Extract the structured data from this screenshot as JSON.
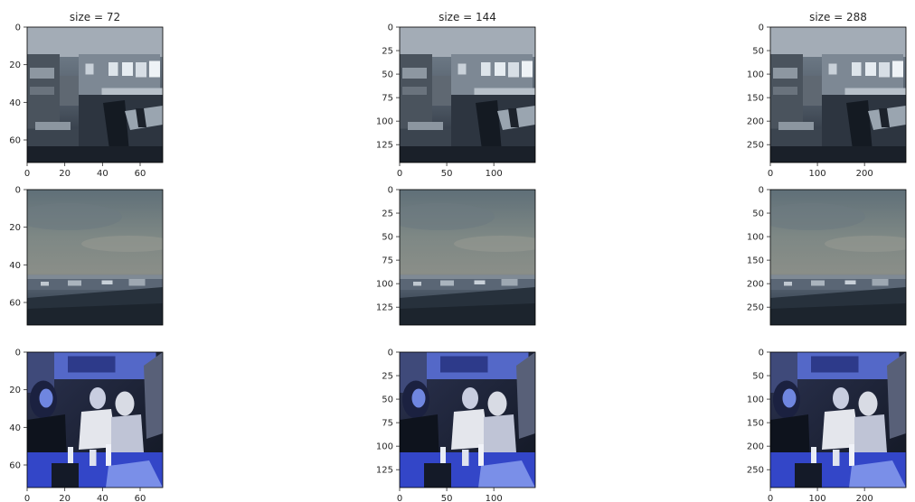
{
  "figure": {
    "background": "#ffffff"
  },
  "chart_data": [
    {
      "type": "image",
      "title": "size = 72",
      "row": 0,
      "col": 0,
      "image": "kitchen-dining-room",
      "xlim": [
        0,
        72
      ],
      "ylim": [
        72,
        0
      ],
      "xticks": [
        0,
        20,
        40,
        60
      ],
      "yticks": [
        0,
        20,
        40,
        60
      ],
      "xticklabels": [
        "0",
        "20",
        "40",
        "60"
      ],
      "yticklabels": [
        "0",
        "20",
        "40",
        "60"
      ]
    },
    {
      "type": "image",
      "title": "size = 144",
      "row": 0,
      "col": 1,
      "image": "kitchen-dining-room",
      "xlim": [
        0,
        144
      ],
      "ylim": [
        144,
        0
      ],
      "xticks": [
        0,
        50,
        100
      ],
      "yticks": [
        0,
        25,
        50,
        75,
        100,
        125
      ],
      "xticklabels": [
        "0",
        "50",
        "100"
      ],
      "yticklabels": [
        "0",
        "25",
        "50",
        "75",
        "100",
        "125"
      ]
    },
    {
      "type": "image",
      "title": "size = 288",
      "row": 0,
      "col": 2,
      "image": "kitchen-dining-room",
      "xlim": [
        0,
        288
      ],
      "ylim": [
        288,
        0
      ],
      "xticks": [
        0,
        100,
        200
      ],
      "yticks": [
        0,
        50,
        100,
        150,
        200,
        250
      ],
      "xticklabels": [
        "0",
        "100",
        "200"
      ],
      "yticklabels": [
        "0",
        "50",
        "100",
        "150",
        "200",
        "250"
      ]
    },
    {
      "type": "image",
      "title": "",
      "row": 1,
      "col": 0,
      "image": "cloudy-sky-landscape",
      "xlim": [
        0,
        72
      ],
      "ylim": [
        72,
        0
      ],
      "xticks": [],
      "yticks": [
        0,
        20,
        40,
        60
      ],
      "xticklabels": [],
      "yticklabels": [
        "0",
        "20",
        "40",
        "60"
      ]
    },
    {
      "type": "image",
      "title": "",
      "row": 1,
      "col": 1,
      "image": "cloudy-sky-landscape",
      "xlim": [
        0,
        144
      ],
      "ylim": [
        144,
        0
      ],
      "xticks": [],
      "yticks": [
        0,
        25,
        50,
        75,
        100,
        125
      ],
      "xticklabels": [],
      "yticklabels": [
        "0",
        "25",
        "50",
        "75",
        "100",
        "125"
      ]
    },
    {
      "type": "image",
      "title": "",
      "row": 1,
      "col": 2,
      "image": "cloudy-sky-landscape",
      "xlim": [
        0,
        288
      ],
      "ylim": [
        288,
        0
      ],
      "xticks": [],
      "yticks": [
        0,
        50,
        100,
        150,
        200,
        250
      ],
      "xticklabels": [],
      "yticklabels": [
        "0",
        "50",
        "100",
        "150",
        "200",
        "250"
      ]
    },
    {
      "type": "image",
      "title": "",
      "row": 2,
      "col": 0,
      "image": "people-at-table",
      "xlim": [
        0,
        72
      ],
      "ylim": [
        72,
        0
      ],
      "xticks": [
        0,
        20,
        40,
        60
      ],
      "yticks": [
        0,
        20,
        40,
        60
      ],
      "xticklabels": [
        "0",
        "20",
        "40",
        "60"
      ],
      "yticklabels": [
        "0",
        "20",
        "40",
        "60"
      ]
    },
    {
      "type": "image",
      "title": "",
      "row": 2,
      "col": 1,
      "image": "people-at-table",
      "xlim": [
        0,
        144
      ],
      "ylim": [
        144,
        0
      ],
      "xticks": [
        0,
        50,
        100
      ],
      "yticks": [
        0,
        25,
        50,
        75,
        100,
        125
      ],
      "xticklabels": [
        "0",
        "50",
        "100"
      ],
      "yticklabels": [
        "0",
        "25",
        "50",
        "75",
        "100",
        "125"
      ]
    },
    {
      "type": "image",
      "title": "",
      "row": 2,
      "col": 2,
      "image": "people-at-table",
      "xlim": [
        0,
        288
      ],
      "ylim": [
        288,
        0
      ],
      "xticks": [
        0,
        100,
        200
      ],
      "yticks": [
        0,
        50,
        100,
        150,
        200,
        250
      ],
      "xticklabels": [
        "0",
        "100",
        "200"
      ],
      "yticklabels": [
        "0",
        "50",
        "100",
        "150",
        "200",
        "250"
      ]
    }
  ]
}
